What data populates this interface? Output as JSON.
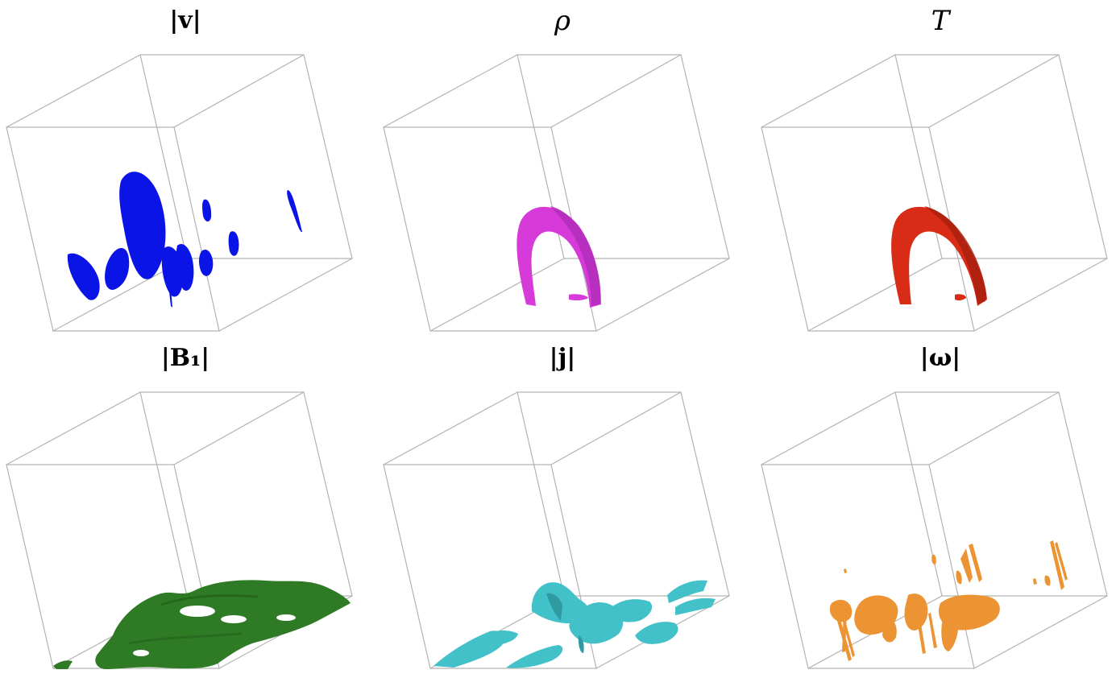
{
  "panels": [
    {
      "id": "v",
      "title": "|v|",
      "color": "#0a14e6"
    },
    {
      "id": "rho",
      "title": "ρ",
      "color": "#d63ad9"
    },
    {
      "id": "T",
      "title": "T",
      "color": "#d92c17"
    },
    {
      "id": "B1",
      "title": "|B₁|",
      "color": "#2f7a24"
    },
    {
      "id": "j",
      "title": "|j|",
      "color": "#43c1c9"
    },
    {
      "id": "omega",
      "title": "|ω|",
      "color": "#ec9433"
    }
  ]
}
